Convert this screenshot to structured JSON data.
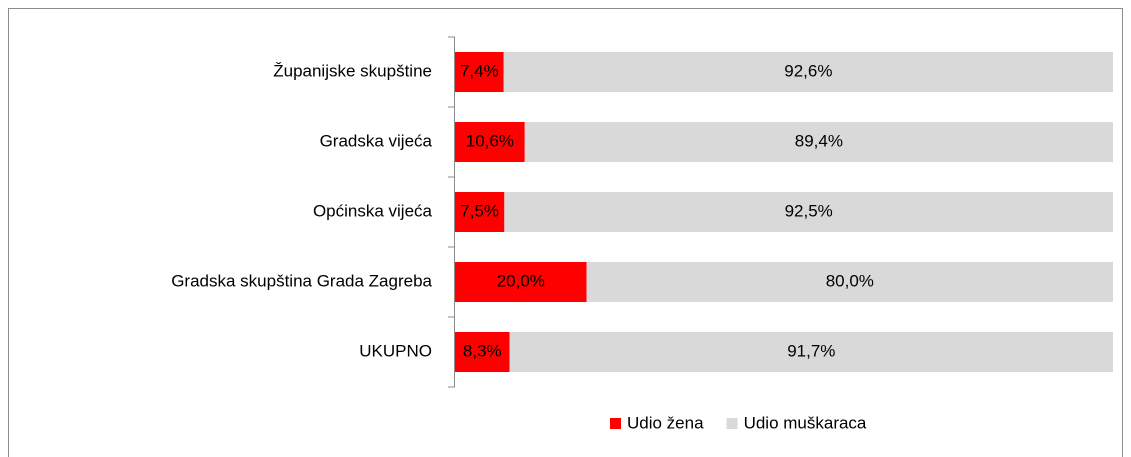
{
  "chart_data": {
    "type": "stacked-bar",
    "orientation": "horizontal",
    "categories": [
      "Županijske skupštine",
      "Gradska vijeća",
      "Općinska vijeća",
      "Gradska skupština Grada Zagreba",
      "UKUPNO"
    ],
    "series": [
      {
        "name": "Udio žena",
        "color": "#ff0000",
        "values": [
          7.4,
          10.6,
          7.5,
          20.0,
          8.3
        ],
        "value_labels": [
          "7,4%",
          "10,6%",
          "7,5%",
          "20,0%",
          "8,3%"
        ]
      },
      {
        "name": "Udio muškaraca",
        "color": "#d9d9d9",
        "values": [
          92.6,
          89.4,
          92.5,
          80.0,
          91.7
        ],
        "value_labels": [
          "92,6%",
          "89,4%",
          "92,5%",
          "80,0%",
          "91,7%"
        ]
      }
    ],
    "xlim": [
      0,
      100
    ],
    "legend": "bottom"
  }
}
